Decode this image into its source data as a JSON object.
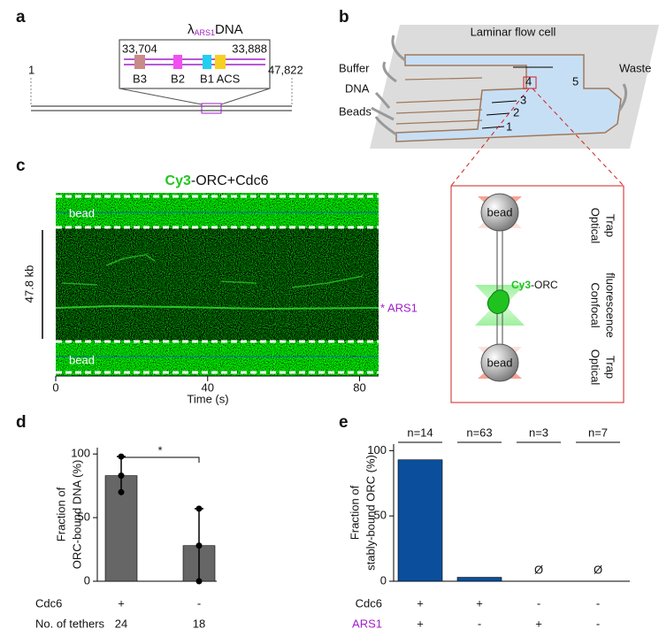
{
  "panel_a": {
    "label": "a",
    "title": {
      "symbol": "λ",
      "subscript": "ARS1",
      "text": "DNA"
    },
    "inset_start": "33,704",
    "inset_end": "33,888",
    "elements": [
      "B3",
      "B2",
      "B1",
      "ACS"
    ],
    "start": "1",
    "end": "47,822"
  },
  "panel_b": {
    "label": "b",
    "title": "Laminar flow cell",
    "inlets": [
      "Buffer",
      "DNA",
      "Beads"
    ],
    "outlet": "Waste",
    "channels": [
      "1",
      "2",
      "3",
      "4",
      "5"
    ],
    "bead": "bead",
    "dye": "Cy3",
    "protein": "-ORC",
    "sections": [
      [
        "Optical",
        "Trap"
      ],
      [
        "Confocal",
        "fluorescence"
      ],
      [
        "Optical",
        "Trap"
      ]
    ]
  },
  "panel_c": {
    "label": "c",
    "title": {
      "dye": "Cy3",
      "text": "-ORC+Cdc6"
    },
    "bead": "bead",
    "scale_bar": "47.8 kb",
    "marker": "* ARS1",
    "xlabel": "Time (s)",
    "xlim": [
      0,
      85
    ],
    "xticks": [
      0,
      40,
      80
    ]
  },
  "chart_data": [
    {
      "label": "d",
      "type": "bar",
      "ylabel": [
        "Fraction of",
        "ORC-bound DNA (%)"
      ],
      "values": [
        83,
        28
      ],
      "errors": [
        15,
        29
      ],
      "points": [
        [
          98,
          83,
          70
        ],
        [
          57,
          28,
          0
        ]
      ],
      "color": "#666666",
      "ylim": [
        0,
        105
      ],
      "yticks": [
        0,
        50,
        100
      ],
      "significance": "*",
      "rows": [
        {
          "name": "Cdc6",
          "values": [
            "+",
            "-"
          ]
        },
        {
          "name": "No. of tethers",
          "values": [
            "24",
            "18"
          ]
        }
      ]
    },
    {
      "label": "e",
      "type": "bar",
      "ylabel": [
        "Fraction of",
        "stably-bound ORC (%)"
      ],
      "values": [
        93,
        3,
        0,
        0
      ],
      "n_labels": [
        "n=14",
        "n=63",
        "n=3",
        "n=7"
      ],
      "empty_symbol": "Ø",
      "color": "#0b4f9c",
      "ylim": [
        0,
        105
      ],
      "yticks": [
        0,
        50,
        100
      ],
      "rows": [
        {
          "name": "Cdc6",
          "values": [
            "+",
            "+",
            "-",
            "-"
          ]
        },
        {
          "name": "ARS1",
          "color": "#a020c8",
          "values": [
            "+",
            "-",
            "+",
            "-"
          ]
        }
      ]
    }
  ]
}
